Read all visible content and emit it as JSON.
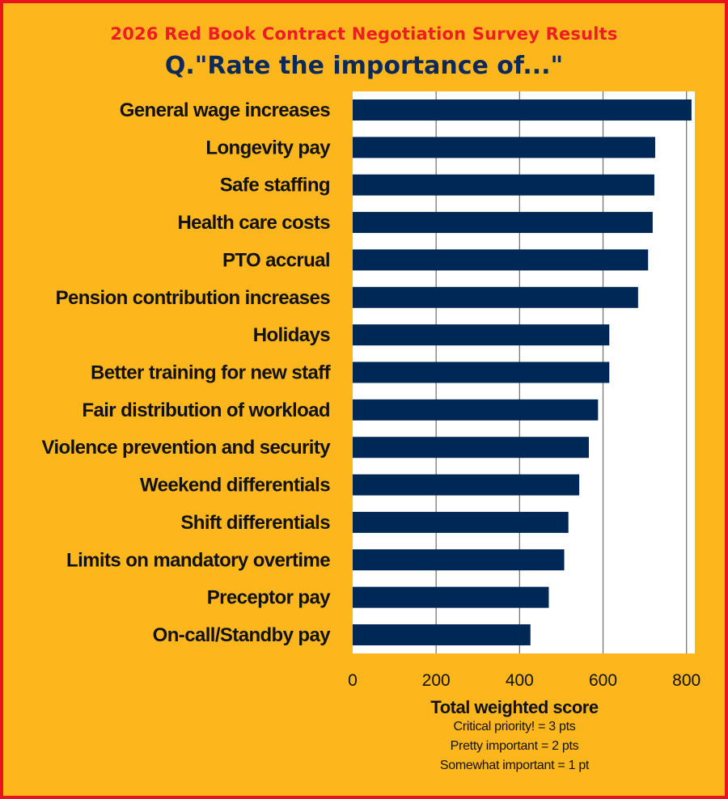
{
  "chart_data": {
    "type": "bar",
    "orientation": "horizontal",
    "title": "2026 Red Book Contract Negotiation Survey Results",
    "subtitle": "Q.\"Rate the importance of...\"",
    "categories": [
      "General wage increases",
      "Longevity pay",
      "Safe staffing",
      "Health care costs",
      "PTO accrual",
      "Pension contribution increases",
      "Holidays",
      "Better training for new staff",
      "Fair distribution of workload",
      "Violence prevention and security",
      "Weekend differentials",
      "Shift differentials",
      "Limits on mandatory overtime",
      "Preceptor pay",
      "On-call/Standby pay"
    ],
    "values": [
      812,
      725,
      723,
      719,
      708,
      684,
      615,
      615,
      588,
      566,
      543,
      517,
      507,
      470,
      426
    ],
    "xlabel": "Total weighted score",
    "xlabel_notes": [
      "Critical priority! = 3 pts",
      "Pretty important = 2 pts",
      "Somewhat important = 1 pt"
    ],
    "xticks": [
      "0",
      "200",
      "400",
      "600",
      "800"
    ],
    "xlim": [
      0,
      820
    ],
    "grid": "vertical",
    "colors": {
      "bar": "#002856",
      "background": "#fdb71c",
      "border": "#e8141b",
      "title": "#ee1c24",
      "subtitle": "#0b2a5a",
      "plot": "#ffffff"
    }
  }
}
